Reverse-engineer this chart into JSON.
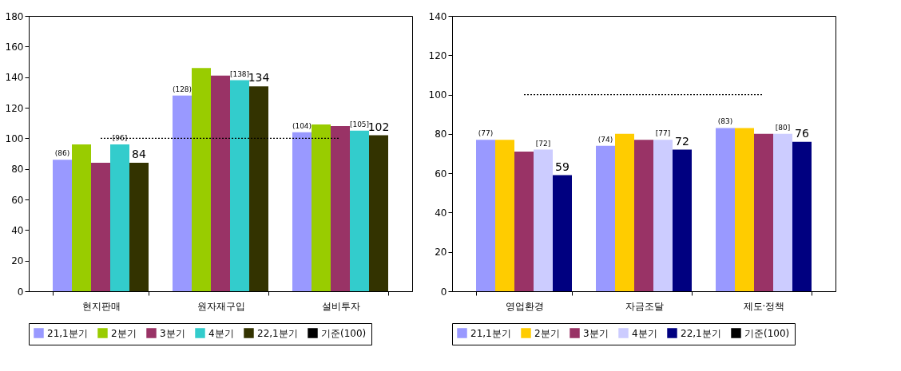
{
  "chart_data": [
    {
      "type": "bar",
      "categories": [
        "현지판매",
        "원자재구입",
        "설비투자"
      ],
      "ylim": [
        0,
        180
      ],
      "yticks": [
        0,
        20,
        40,
        60,
        80,
        100,
        120,
        140,
        160,
        180
      ],
      "grid": false,
      "legend": "bottom",
      "series": [
        {
          "name": "21,1분기",
          "color": "#9999ff",
          "values": [
            86,
            128,
            104
          ],
          "value_labels": [
            "(86)",
            "(128)",
            "(104)"
          ]
        },
        {
          "name": "2분기",
          "color": "#99cc00",
          "values": [
            96,
            146,
            109
          ]
        },
        {
          "name": "3분기",
          "color": "#993366",
          "values": [
            84,
            141,
            108
          ]
        },
        {
          "name": "4분기",
          "color": "#33cccc",
          "values": [
            96,
            138,
            105
          ],
          "value_labels": [
            "[96]",
            "[138]",
            "[105]"
          ]
        },
        {
          "name": "22,1분기",
          "color": "#333300",
          "values": [
            84,
            134,
            102
          ],
          "value_labels": [
            "84",
            "134",
            "102"
          ]
        },
        {
          "name": "기준(100)",
          "type": "line",
          "color": "#000000",
          "line_style": "dotted",
          "marker": "none",
          "values": [
            100,
            100,
            100
          ]
        }
      ]
    },
    {
      "type": "bar",
      "categories": [
        "영업환경",
        "자금조달",
        "제도·정책"
      ],
      "ylim": [
        0,
        140
      ],
      "yticks": [
        0,
        20,
        40,
        60,
        80,
        100,
        120,
        140
      ],
      "grid": false,
      "legend": "bottom",
      "series": [
        {
          "name": "21,1분기",
          "color": "#9999ff",
          "values": [
            77,
            74,
            83
          ],
          "value_labels": [
            "(77)",
            "(74)",
            "(83)"
          ]
        },
        {
          "name": "2분기",
          "color": "#ffcc00",
          "values": [
            77,
            80,
            83
          ]
        },
        {
          "name": "3분기",
          "color": "#993366",
          "values": [
            71,
            77,
            80
          ]
        },
        {
          "name": "4분기",
          "color": "#ccccff",
          "values": [
            72,
            77,
            80
          ],
          "value_labels": [
            "[72]",
            "[77]",
            "[80]"
          ]
        },
        {
          "name": "22,1분기",
          "color": "#000080",
          "values": [
            59,
            72,
            76
          ],
          "value_labels": [
            "59",
            "72",
            "76"
          ]
        },
        {
          "name": "기준(100)",
          "type": "line",
          "color": "#000000",
          "line_style": "dotted",
          "marker": "none",
          "values": [
            100,
            100,
            100
          ]
        }
      ]
    }
  ]
}
